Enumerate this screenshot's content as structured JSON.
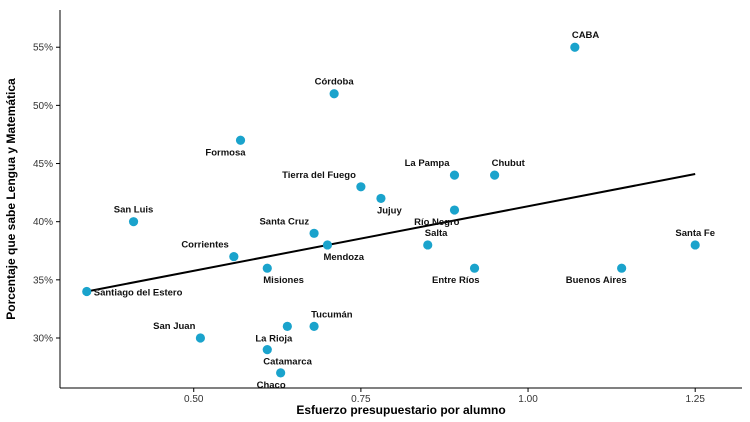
{
  "chart_data": {
    "type": "scatter",
    "xlabel": "Esfuerzo presupuestario por alumno",
    "ylabel": "Porcentaje que sabe Lengua y Matemática",
    "xlim": [
      0.3,
      1.32
    ],
    "ylim": [
      25.7,
      58.2
    ],
    "x_ticks": [
      0.5,
      0.75,
      1.0,
      1.25
    ],
    "x_tick_labels": [
      "0.50",
      "0.75",
      "1.00",
      "1.25"
    ],
    "y_ticks": [
      30,
      35,
      40,
      45,
      50,
      55
    ],
    "y_tick_labels": [
      "30%",
      "35%",
      "40%",
      "45%",
      "50%",
      "55%"
    ],
    "grid": false,
    "point_color": "#1aa3cc",
    "trend_line": {
      "x": [
        0.34,
        1.25
      ],
      "y": [
        34.0,
        44.1
      ],
      "color": "#000000"
    },
    "points": [
      {
        "name": "CABA",
        "x": 1.07,
        "y": 55.0,
        "label_pos": "above-right"
      },
      {
        "name": "Córdoba",
        "x": 0.71,
        "y": 51.0,
        "label_pos": "above"
      },
      {
        "name": "Formosa",
        "x": 0.57,
        "y": 47.0,
        "label_pos": "below-left"
      },
      {
        "name": "La Pampa",
        "x": 0.89,
        "y": 44.0,
        "label_pos": "above-left"
      },
      {
        "name": "Chubut",
        "x": 0.95,
        "y": 44.0,
        "label_pos": "above-right"
      },
      {
        "name": "Tierra del Fuego",
        "x": 0.75,
        "y": 43.0,
        "label_pos": "above-left"
      },
      {
        "name": "Jujuy",
        "x": 0.78,
        "y": 42.0,
        "label_pos": "below-right"
      },
      {
        "name": "Río Negro",
        "x": 0.89,
        "y": 41.0,
        "label_pos": "below-left"
      },
      {
        "name": "San Luis",
        "x": 0.41,
        "y": 40.0,
        "label_pos": "above"
      },
      {
        "name": "Santa Cruz",
        "x": 0.68,
        "y": 39.0,
        "label_pos": "above-left"
      },
      {
        "name": "Mendoza",
        "x": 0.7,
        "y": 38.0,
        "label_pos": "below-right"
      },
      {
        "name": "Salta",
        "x": 0.85,
        "y": 38.0,
        "label_pos": "above-right"
      },
      {
        "name": "Santa Fe",
        "x": 1.25,
        "y": 38.0,
        "label_pos": "above"
      },
      {
        "name": "Corrientes",
        "x": 0.56,
        "y": 37.0,
        "label_pos": "above-left"
      },
      {
        "name": "Misiones",
        "x": 0.61,
        "y": 36.0,
        "label_pos": "below-right"
      },
      {
        "name": "Entre Ríos",
        "x": 0.92,
        "y": 36.0,
        "label_pos": "below-left"
      },
      {
        "name": "Buenos Aires",
        "x": 1.14,
        "y": 36.0,
        "label_pos": "below-left"
      },
      {
        "name": "Santiago del Estero",
        "x": 0.34,
        "y": 34.0,
        "label_pos": "right"
      },
      {
        "name": "Tucumán",
        "x": 0.68,
        "y": 31.0,
        "label_pos": "above-right"
      },
      {
        "name": "La Rioja",
        "x": 0.64,
        "y": 31.0,
        "label_pos": "below-left"
      },
      {
        "name": "San Juan",
        "x": 0.51,
        "y": 30.0,
        "label_pos": "above-left"
      },
      {
        "name": "Catamarca",
        "x": 0.61,
        "y": 29.0,
        "label_pos": "below-right"
      },
      {
        "name": "Chaco",
        "x": 0.63,
        "y": 27.0,
        "label_pos": "below-left"
      }
    ]
  }
}
